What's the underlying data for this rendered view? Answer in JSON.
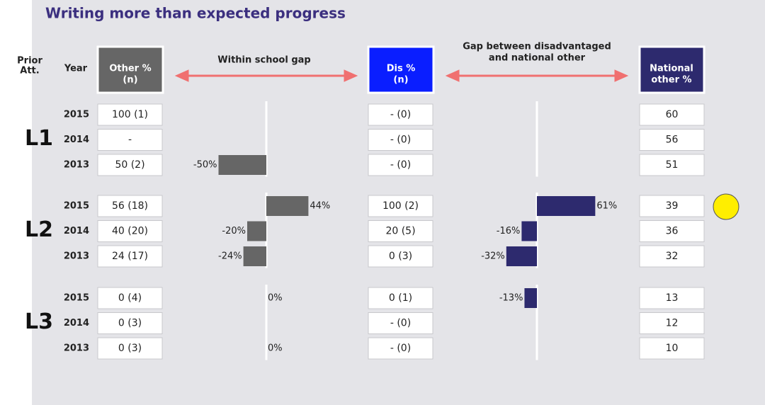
{
  "title": "Writing more than expected progress",
  "headers": {
    "prior": [
      "Prior",
      "Att."
    ],
    "year": "Year",
    "other": [
      "Other %",
      "(n)"
    ],
    "within": "Within school gap",
    "dis": [
      "Dis %",
      "(n)"
    ],
    "gap": [
      "Gap between disadvantaged",
      "and national other"
    ],
    "national": [
      "National",
      "other %"
    ]
  },
  "groups": [
    {
      "level": "L1",
      "rows": [
        {
          "year": "2015",
          "other": "100 (1)",
          "within_gap": null,
          "dis": "- (0)",
          "national_gap": null,
          "national": 60
        },
        {
          "year": "2014",
          "other": "-",
          "within_gap": null,
          "dis": "- (0)",
          "national_gap": null,
          "national": 56
        },
        {
          "year": "2013",
          "other": "50 (2)",
          "within_gap": -50,
          "within_gap_label": "-50%",
          "dis": "- (0)",
          "national_gap": null,
          "national": 51
        }
      ]
    },
    {
      "level": "L2",
      "rows": [
        {
          "year": "2015",
          "other": "56 (18)",
          "within_gap": 44,
          "within_gap_label": "44%",
          "dis": "100 (2)",
          "national_gap": 61,
          "national_gap_label": "61%",
          "national": 39
        },
        {
          "year": "2014",
          "other": "40 (20)",
          "within_gap": -20,
          "within_gap_label": "-20%",
          "dis": "20 (5)",
          "national_gap": -16,
          "national_gap_label": "-16%",
          "national": 36
        },
        {
          "year": "2013",
          "other": "24 (17)",
          "within_gap": -24,
          "within_gap_label": "-24%",
          "dis": "0 (3)",
          "national_gap": -32,
          "national_gap_label": "-32%",
          "national": 32
        }
      ]
    },
    {
      "level": "L3",
      "rows": [
        {
          "year": "2015",
          "other": "0 (4)",
          "within_gap": 0,
          "within_gap_label": "0%",
          "dis": "0 (1)",
          "national_gap": -13,
          "national_gap_label": "-13%",
          "national": 13
        },
        {
          "year": "2014",
          "other": "0 (3)",
          "within_gap": null,
          "dis": "- (0)",
          "national_gap": null,
          "national": 12
        },
        {
          "year": "2013",
          "other": "0 (3)",
          "within_gap": 0,
          "within_gap_label": "0%",
          "dis": "- (0)",
          "national_gap": null,
          "national": 10
        }
      ]
    }
  ]
}
